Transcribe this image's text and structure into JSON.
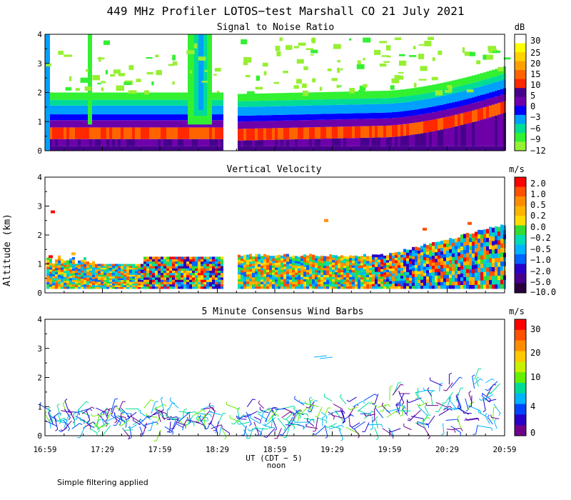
{
  "figure": {
    "title": "449 MHz Profiler LOTOS−test Marshall CO 21 July 2021",
    "footnote": "Simple filtering applied",
    "xlabel": "UT  (CDT − 5)",
    "xlabel_sub": "noon",
    "ylabel": "Altitude (km)"
  },
  "chart_data": [
    {
      "type": "heatmap",
      "title": "Signal to Noise Ratio",
      "x_ticks": [
        "16:59",
        "17:29",
        "17:59",
        "18:29",
        "18:59",
        "19:29",
        "19:59",
        "20:29",
        "20:59"
      ],
      "y_ticks": [
        "0",
        "1",
        "2",
        "3",
        "4"
      ],
      "ylim": [
        0,
        4
      ],
      "colorbar": {
        "unit": "dB",
        "labels": [
          "30",
          "25",
          "20",
          "15",
          "10",
          "5",
          "0",
          "−3",
          "−6",
          "−9",
          "−12"
        ],
        "colors": [
          "#ffffff",
          "#ffff00",
          "#ffd200",
          "#ffa000",
          "#ff6400",
          "#ff2800",
          "#46008c",
          "#6e00aa",
          "#0000ff",
          "#00a0ff",
          "#00dc96",
          "#32f032",
          "#96f032"
        ]
      }
    },
    {
      "type": "heatmap",
      "title": "Vertical Velocity",
      "x_ticks": [
        "16:59",
        "17:29",
        "17:59",
        "18:29",
        "18:59",
        "19:29",
        "19:59",
        "20:29",
        "20:59"
      ],
      "y_ticks": [
        "0",
        "1",
        "2",
        "3",
        "4"
      ],
      "ylim": [
        0,
        4
      ],
      "colorbar": {
        "unit": "m/s",
        "labels": [
          "2.0",
          "1.0",
          "0.5",
          "0.2",
          "0.0",
          "−0.2",
          "−0.5",
          "−1.0",
          "−2.0",
          "−5.0",
          "−10.0"
        ],
        "colors": [
          "#ff0000",
          "#ff5000",
          "#ff8c00",
          "#ffb400",
          "#ffdc00",
          "#32dc32",
          "#00dcb4",
          "#00b4ff",
          "#0064ff",
          "#2800c8",
          "#46008c",
          "#28003c"
        ]
      }
    },
    {
      "type": "scatter",
      "title": "5 Minute Consensus Wind Barbs",
      "x_ticks": [
        "16:59",
        "17:29",
        "17:59",
        "18:29",
        "18:59",
        "19:29",
        "19:59",
        "20:29",
        "20:59"
      ],
      "y_ticks": [
        "0",
        "1",
        "2",
        "3",
        "4"
      ],
      "ylim": [
        0,
        4
      ],
      "colorbar": {
        "unit": "m/s",
        "labels": [
          "30",
          "20",
          "10",
          "4",
          "0"
        ],
        "colors": [
          "#ff0000",
          "#ff5000",
          "#ff8c00",
          "#ffc800",
          "#c8f000",
          "#64f000",
          "#00dc96",
          "#00b4ff",
          "#0046ff",
          "#2800c8",
          "#6e008c"
        ]
      }
    }
  ]
}
